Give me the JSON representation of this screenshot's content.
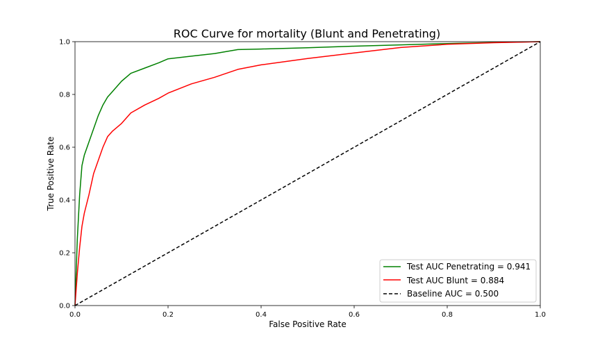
{
  "chart_data": {
    "type": "line",
    "title": "ROC Curve for mortality (Blunt and Penetrating)",
    "xlabel": "False Positive Rate",
    "ylabel": "True Positive Rate",
    "xlim": [
      0,
      1
    ],
    "ylim": [
      0,
      1
    ],
    "x_ticks": [
      "0.0",
      "0.2",
      "0.4",
      "0.6",
      "0.8",
      "1.0"
    ],
    "y_ticks": [
      "0.0",
      "0.2",
      "0.4",
      "0.6",
      "0.8",
      "1.0"
    ],
    "grid": false,
    "legend_position": "lower-right",
    "series": [
      {
        "name": "Test AUC Penetrating = 0.941",
        "color": "#008000",
        "style": "solid",
        "points": [
          [
            0,
            0
          ],
          [
            0.005,
            0.25
          ],
          [
            0.01,
            0.42
          ],
          [
            0.015,
            0.53
          ],
          [
            0.02,
            0.57
          ],
          [
            0.03,
            0.62
          ],
          [
            0.04,
            0.67
          ],
          [
            0.05,
            0.72
          ],
          [
            0.06,
            0.76
          ],
          [
            0.07,
            0.79
          ],
          [
            0.08,
            0.81
          ],
          [
            0.09,
            0.83
          ],
          [
            0.1,
            0.85
          ],
          [
            0.12,
            0.88
          ],
          [
            0.15,
            0.9
          ],
          [
            0.18,
            0.92
          ],
          [
            0.2,
            0.935
          ],
          [
            0.25,
            0.945
          ],
          [
            0.3,
            0.955
          ],
          [
            0.35,
            0.97
          ],
          [
            0.4,
            0.972
          ],
          [
            0.5,
            0.977
          ],
          [
            0.6,
            0.983
          ],
          [
            0.7,
            0.988
          ],
          [
            0.8,
            0.993
          ],
          [
            0.9,
            0.997
          ],
          [
            1.0,
            1.0
          ]
        ]
      },
      {
        "name": "Test AUC Blunt = 0.884",
        "color": "#ff0000",
        "style": "solid",
        "points": [
          [
            0,
            0
          ],
          [
            0.005,
            0.12
          ],
          [
            0.01,
            0.22
          ],
          [
            0.015,
            0.3
          ],
          [
            0.02,
            0.35
          ],
          [
            0.03,
            0.42
          ],
          [
            0.04,
            0.5
          ],
          [
            0.05,
            0.55
          ],
          [
            0.06,
            0.6
          ],
          [
            0.07,
            0.64
          ],
          [
            0.08,
            0.66
          ],
          [
            0.1,
            0.69
          ],
          [
            0.12,
            0.73
          ],
          [
            0.15,
            0.76
          ],
          [
            0.18,
            0.785
          ],
          [
            0.2,
            0.805
          ],
          [
            0.25,
            0.84
          ],
          [
            0.3,
            0.865
          ],
          [
            0.35,
            0.895
          ],
          [
            0.4,
            0.912
          ],
          [
            0.5,
            0.936
          ],
          [
            0.6,
            0.957
          ],
          [
            0.7,
            0.978
          ],
          [
            0.8,
            0.99
          ],
          [
            0.9,
            0.996
          ],
          [
            1.0,
            1.0
          ]
        ]
      },
      {
        "name": "Baseline AUC = 0.500",
        "color": "#000000",
        "style": "dashed",
        "points": [
          [
            0,
            0
          ],
          [
            1,
            1
          ]
        ]
      }
    ]
  }
}
